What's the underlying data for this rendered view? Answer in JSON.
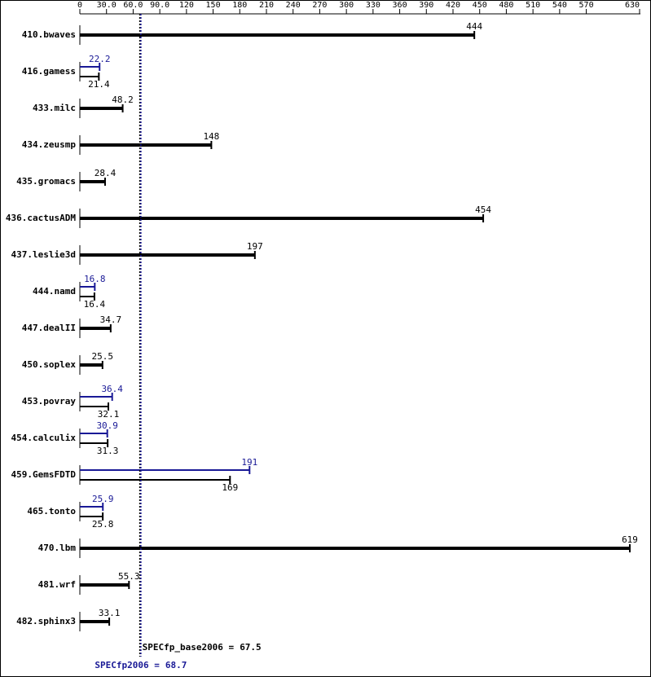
{
  "chart_data": {
    "type": "bar",
    "categories": [
      "410.bwaves",
      "416.gamess",
      "433.milc",
      "434.zeusmp",
      "435.gromacs",
      "436.cactusADM",
      "437.leslie3d",
      "444.namd",
      "447.dealII",
      "450.soplex",
      "453.povray",
      "454.calculix",
      "459.GemsFDTD",
      "465.tonto",
      "470.lbm",
      "481.wrf",
      "482.sphinx3"
    ],
    "series": [
      {
        "color": "#000000",
        "values": [
          444,
          21.4,
          48.2,
          148,
          28.4,
          454,
          197,
          16.4,
          34.7,
          25.5,
          32.1,
          31.3,
          169,
          25.8,
          619,
          55.3,
          33.1
        ]
      },
      {
        "color": "#191996",
        "values": [
          null,
          22.2,
          null,
          null,
          null,
          null,
          null,
          16.8,
          null,
          null,
          36.4,
          30.9,
          191,
          25.9,
          null,
          null,
          null
        ]
      }
    ],
    "xlim": [
      0,
      630
    ],
    "xticks": [
      0,
      {
        "value": 30,
        "label": "30.0"
      },
      {
        "value": 60,
        "label": "60.0"
      },
      {
        "value": 90,
        "label": "90.0"
      },
      120,
      150,
      180,
      210,
      240,
      270,
      300,
      330,
      360,
      390,
      420,
      450,
      480,
      510,
      540,
      570,
      630
    ],
    "reference_lines": [
      {
        "label": "SPECfp_base2006 =",
        "value": 67.5,
        "color": "#000000"
      },
      {
        "label": "SPECfp2006 =",
        "value": 68.7,
        "color": "#191996"
      }
    ]
  }
}
